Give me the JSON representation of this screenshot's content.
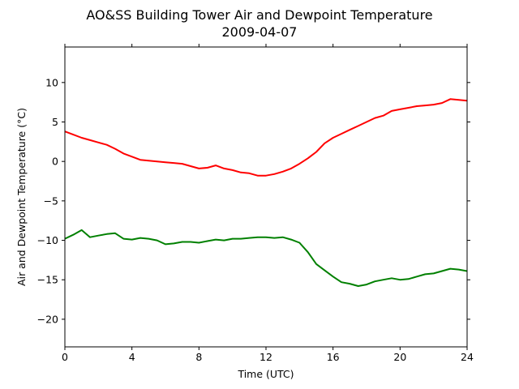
{
  "chart_data": {
    "type": "line",
    "title": "AO&SS Building Tower Air and Dewpoint Temperature",
    "subtitle": "2009-04-07",
    "xlabel": "Time (UTC)",
    "ylabel": "Air and Dewpoint Temperature (°C)",
    "xlim": [
      0,
      24
    ],
    "ylim": [
      -23.5,
      14.5
    ],
    "xticks": [
      0,
      4,
      8,
      12,
      16,
      20,
      24
    ],
    "yticks": [
      -20,
      -15,
      -10,
      -5,
      0,
      5,
      10
    ],
    "grid": false,
    "series": [
      {
        "color": "#ff0000",
        "x": [
          0,
          0.5,
          1,
          1.5,
          2,
          2.5,
          3,
          3.5,
          4,
          4.5,
          5,
          5.5,
          6,
          6.5,
          7,
          7.5,
          8,
          8.5,
          9,
          9.5,
          10,
          10.5,
          11,
          11.5,
          12,
          12.5,
          13,
          13.5,
          14,
          14.5,
          15,
          15.5,
          16,
          16.5,
          17,
          17.5,
          18,
          18.5,
          19,
          19.5,
          20,
          20.5,
          21,
          21.5,
          22,
          22.5,
          23,
          23.5,
          24
        ],
        "values": [
          3.8,
          3.4,
          3.0,
          2.7,
          2.4,
          2.1,
          1.6,
          1.0,
          0.6,
          0.2,
          0.1,
          0.0,
          -0.1,
          -0.2,
          -0.3,
          -0.6,
          -0.9,
          -0.8,
          -0.5,
          -0.9,
          -1.1,
          -1.4,
          -1.5,
          -1.8,
          -1.8,
          -1.6,
          -1.3,
          -0.9,
          -0.3,
          0.4,
          1.2,
          2.3,
          3.0,
          3.5,
          4.0,
          4.5,
          5.0,
          5.5,
          5.8,
          6.4,
          6.6,
          6.8,
          7.0,
          7.1,
          7.2,
          7.4,
          7.9,
          7.8,
          7.7
        ]
      },
      {
        "color": "#008000",
        "x": [
          0,
          0.5,
          1,
          1.5,
          2,
          2.5,
          3,
          3.5,
          4,
          4.5,
          5,
          5.5,
          6,
          6.5,
          7,
          7.5,
          8,
          8.5,
          9,
          9.5,
          10,
          10.5,
          11,
          11.5,
          12,
          12.5,
          13,
          13.5,
          14,
          14.5,
          15,
          15.5,
          16,
          16.5,
          17,
          17.5,
          18,
          18.5,
          19,
          19.5,
          20,
          20.5,
          21,
          21.5,
          22,
          22.5,
          23,
          23.5,
          24
        ],
        "values": [
          -9.8,
          -9.3,
          -8.7,
          -9.6,
          -9.4,
          -9.2,
          -9.1,
          -9.8,
          -9.9,
          -9.7,
          -9.8,
          -10.0,
          -10.5,
          -10.4,
          -10.2,
          -10.2,
          -10.3,
          -10.1,
          -9.9,
          -10.0,
          -9.8,
          -9.8,
          -9.7,
          -9.6,
          -9.6,
          -9.7,
          -9.6,
          -9.9,
          -10.3,
          -11.5,
          -13.0,
          -13.8,
          -14.6,
          -15.3,
          -15.5,
          -15.8,
          -15.6,
          -15.2,
          -15.0,
          -14.8,
          -15.0,
          -14.9,
          -14.6,
          -14.3,
          -14.2,
          -13.9,
          -13.6,
          -13.7,
          -13.9
        ]
      }
    ]
  }
}
